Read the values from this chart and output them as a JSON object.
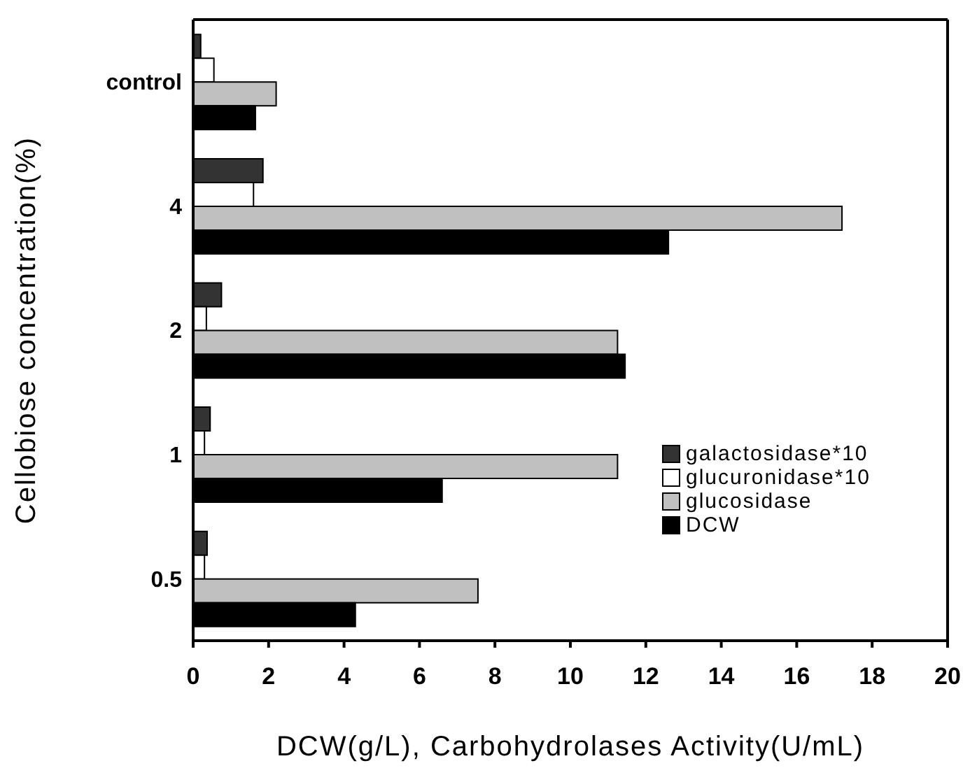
{
  "chart_data": {
    "type": "bar",
    "orientation": "horizontal",
    "xlabel": "DCW(g/L), Carbohydrolases Activity(U/mL)",
    "ylabel": "Cellobiose concentration(%)",
    "categories": [
      "control",
      "4",
      "2",
      "1",
      "0.5"
    ],
    "series": [
      {
        "name": "galactosidase*10",
        "color": "#333333",
        "values": [
          0.2,
          1.85,
          0.75,
          0.45,
          0.37
        ]
      },
      {
        "name": "glucuronidase*10",
        "color": "#ffffff",
        "values": [
          0.55,
          1.6,
          0.35,
          0.3,
          0.3
        ]
      },
      {
        "name": "glucosidase",
        "color": "#c0c0c0",
        "values": [
          2.2,
          17.2,
          11.25,
          11.25,
          7.55
        ]
      },
      {
        "name": "DCW",
        "color": "#000000",
        "values": [
          1.65,
          12.6,
          11.45,
          6.6,
          4.3
        ]
      }
    ],
    "xlim": [
      0,
      20
    ],
    "xticks": [
      0,
      2,
      4,
      6,
      8,
      10,
      12,
      14,
      16,
      18,
      20
    ],
    "legend": "bottom right"
  }
}
